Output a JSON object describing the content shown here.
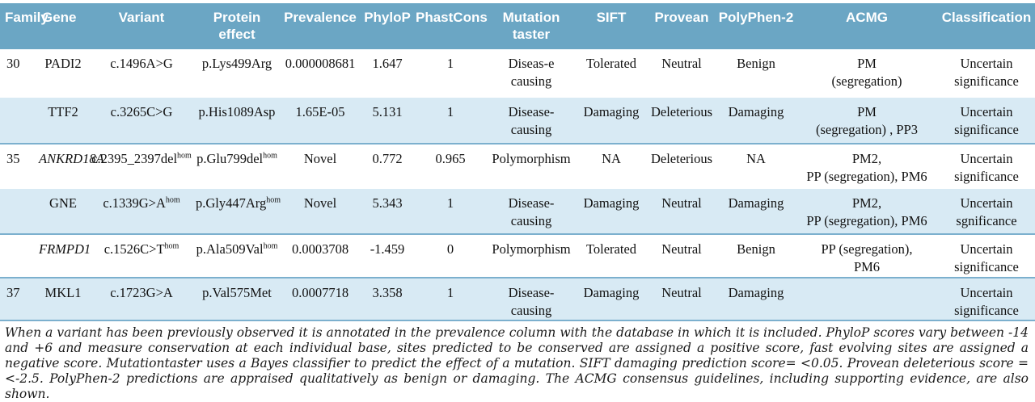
{
  "colors": {
    "header_bg": "#6ba6c4",
    "row_alt_bg": "#d8eaf4",
    "separator_line": "#7cb0ce",
    "header_text": "#ffffff",
    "body_text": "#111111"
  },
  "table": {
    "columns": [
      "Family",
      "Gene",
      "Variant",
      "Protein\neffect",
      "Prevalence",
      "PhyloP",
      "PhastCons",
      "Mutation\ntaster",
      "SIFT",
      "Provean",
      "PolyPhen-2",
      "ACMG",
      "Classification"
    ],
    "rows": [
      {
        "family": "30",
        "gene": "PADI2",
        "gene_italic": false,
        "variant": "c.1496A>G",
        "variant_sup": "",
        "protein": "p.Lys499Arg",
        "protein_sup": "",
        "prevalence": "0.000008681",
        "phylop": "1.647",
        "phastcons": "1",
        "mutation_taster": "Diseas-e\ncausing",
        "sift": "Tolerated",
        "provean": "Neutral",
        "polyphen2": "Benign",
        "acmg": "PM\n(segregation)",
        "classification": "Uncertain\nsignificance"
      },
      {
        "family": "",
        "gene": "TTF2",
        "gene_italic": false,
        "variant": "c.3265C>G",
        "variant_sup": "",
        "protein": "p.His1089Asp",
        "protein_sup": "",
        "prevalence": "1.65E-05",
        "phylop": "5.131",
        "phastcons": "1",
        "mutation_taster": "Disease-\ncausing",
        "sift": "Damaging",
        "provean": "Deleterious",
        "polyphen2": "Damaging",
        "acmg": "PM\n(segregation) , PP3",
        "classification": "Uncertain\nsignificance"
      },
      {
        "family": "35",
        "gene": "ANKRD18A",
        "gene_italic": true,
        "variant": "c.2395_2397del",
        "variant_sup": "hom",
        "protein": "p.Glu799del",
        "protein_sup": "hom",
        "prevalence": "Novel",
        "phylop": "0.772",
        "phastcons": "0.965",
        "mutation_taster": "Polymorphism",
        "sift": "NA",
        "provean": "Deleterious",
        "polyphen2": "NA",
        "acmg": "PM2,\nPP (segregation), PM6",
        "classification": "Uncertain\nsignificance"
      },
      {
        "family": "",
        "gene": "GNE",
        "gene_italic": false,
        "variant": "c.1339G>A",
        "variant_sup": "hom",
        "protein": "p.Gly447Arg",
        "protein_sup": "hom",
        "prevalence": "Novel",
        "phylop": "5.343",
        "phastcons": "1",
        "mutation_taster": "Disease-\ncausing",
        "sift": "Damaging",
        "provean": "Neutral",
        "polyphen2": "Damaging",
        "acmg": "PM2,\nPP (segregation), PM6",
        "classification": "Uncertain\nsgnificance"
      },
      {
        "family": "",
        "gene": "FRMPD1",
        "gene_italic": true,
        "variant": "c.1526C>T",
        "variant_sup": "hom",
        "protein": "p.Ala509Val",
        "protein_sup": "hom",
        "prevalence": "0.0003708",
        "phylop": "-1.459",
        "phastcons": "0",
        "mutation_taster": "Polymorphism",
        "sift": "Tolerated",
        "provean": "Neutral",
        "polyphen2": "Benign",
        "acmg": "PP (segregation),\nPM6",
        "classification": "Uncertain\nsignificance"
      },
      {
        "family": "37",
        "gene": "MKL1",
        "gene_italic": false,
        "variant": "c.1723G>A",
        "variant_sup": "",
        "protein": "p.Val575Met",
        "protein_sup": "",
        "prevalence": "0.0007718",
        "phylop": "3.358",
        "phastcons": "1",
        "mutation_taster": "Disease-\ncausing",
        "sift": "Damaging",
        "provean": "Neutral",
        "polyphen2": "Damaging",
        "acmg": "",
        "classification": "Uncertain\nsignificance"
      }
    ]
  },
  "footnote": "When a variant has been previously observed it is annotated in the prevalence column with the database in which it is included. PhyloP scores vary between -14 and +6 and measure conservation at each individual base, sites predicted to be conserved are assigned a positive score, fast evolving sites are assigned a negative score. Mutationtaster uses a Bayes classifier to predict the effect of a mutation. SIFT damaging prediction score= <0.05. Provean deleterious score = <-2.5. PolyPhen-2 predictions are appraised qualitatively as benign or damaging. The ACMG consensus guidelines, including supporting evidence, are also shown."
}
